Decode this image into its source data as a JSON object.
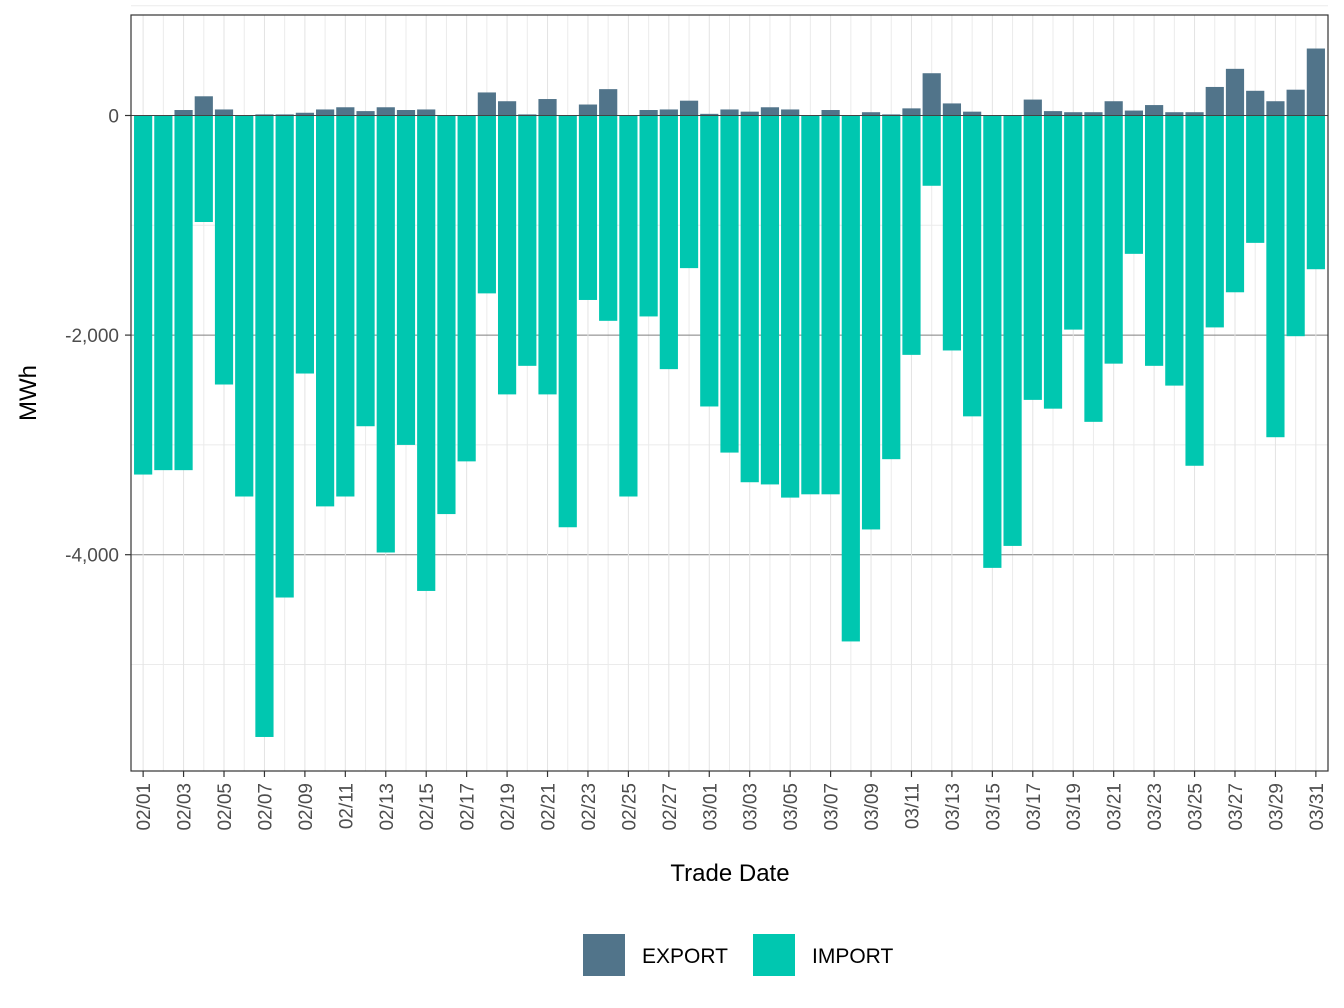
{
  "chart_data": {
    "type": "bar",
    "stacking": "diverging",
    "xlabel": "Trade Date",
    "ylabel": "MWh",
    "ylim": [
      -5950,
      900
    ],
    "y_ticks": [
      0,
      -2000,
      -4000
    ],
    "y_tick_labels": [
      "0",
      "-2,000",
      "-4,000"
    ],
    "categories": [
      "02/01",
      "02/02",
      "02/03",
      "02/04",
      "02/05",
      "02/06",
      "02/07",
      "02/08",
      "02/09",
      "02/10",
      "02/11",
      "02/12",
      "02/13",
      "02/14",
      "02/15",
      "02/16",
      "02/17",
      "02/18",
      "02/19",
      "02/20",
      "02/21",
      "02/22",
      "02/23",
      "02/24",
      "02/25",
      "02/26",
      "02/27",
      "02/28",
      "03/01",
      "03/02",
      "03/03",
      "03/04",
      "03/05",
      "03/06",
      "03/07",
      "03/08",
      "03/09",
      "03/10",
      "03/11",
      "03/12",
      "03/13",
      "03/14",
      "03/15",
      "03/16",
      "03/17",
      "03/18",
      "03/19",
      "03/20",
      "03/21",
      "03/22",
      "03/23",
      "03/24",
      "03/25",
      "03/26",
      "03/27",
      "03/28",
      "03/29",
      "03/30",
      "03/31"
    ],
    "x_tick_labels": [
      "02/01",
      "02/03",
      "02/05",
      "02/07",
      "02/09",
      "02/11",
      "02/13",
      "02/15",
      "02/17",
      "02/19",
      "02/21",
      "02/23",
      "02/25",
      "02/27",
      "03/01",
      "03/03",
      "03/05",
      "03/07",
      "03/09",
      "03/11",
      "03/13",
      "03/15",
      "03/17",
      "03/19",
      "03/21",
      "03/23",
      "03/25",
      "03/27",
      "03/29",
      "03/31"
    ],
    "series": [
      {
        "name": "EXPORT",
        "color": "#51748a",
        "values": [
          0,
          0,
          50,
          175,
          55,
          0,
          10,
          10,
          25,
          55,
          75,
          40,
          75,
          50,
          55,
          0,
          0,
          210,
          130,
          10,
          150,
          0,
          100,
          240,
          0,
          50,
          55,
          135,
          15,
          55,
          35,
          75,
          55,
          0,
          50,
          0,
          30,
          10,
          65,
          385,
          110,
          35,
          0,
          0,
          145,
          40,
          30,
          30,
          130,
          45,
          95,
          30,
          30,
          260,
          425,
          225,
          130,
          235,
          610
        ]
      },
      {
        "name": "IMPORT",
        "color": "#00c7b0",
        "values": [
          -3270,
          -3230,
          -3230,
          -970,
          -2450,
          -3470,
          -5660,
          -4390,
          -2350,
          -3560,
          -3470,
          -2830,
          -3980,
          -3000,
          -4330,
          -3630,
          -3150,
          -1620,
          -2540,
          -2280,
          -2540,
          -3750,
          -1680,
          -1870,
          -3470,
          -1830,
          -2310,
          -1390,
          -2650,
          -3070,
          -3340,
          -3360,
          -3480,
          -3450,
          -3450,
          -4790,
          -3770,
          -3130,
          -2180,
          -640,
          -2140,
          -2740,
          -4120,
          -3920,
          -2590,
          -2670,
          -1950,
          -2790,
          -2260,
          -1260,
          -2280,
          -2460,
          -3190,
          -1930,
          -1610,
          -1160,
          -2930,
          -2010,
          -1400
        ]
      }
    ],
    "legend": {
      "position": "bottom",
      "entries": [
        "EXPORT",
        "IMPORT"
      ]
    }
  }
}
